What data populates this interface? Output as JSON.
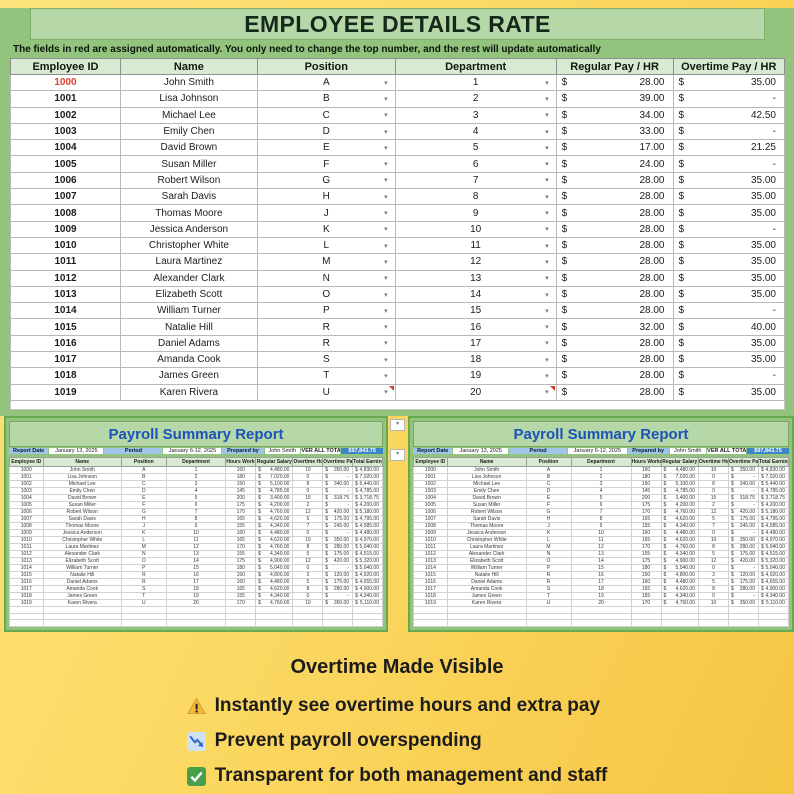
{
  "colors": {
    "green_bg": "#93c47d",
    "green_light": "#b6d7a8",
    "green_header": "#d9ead3",
    "green_border": "#6aa84f",
    "blue_title": "#1c53b8",
    "blue_label": "#9fc5e8",
    "blue_total": "#3d85c6",
    "red_text": "#e03c31",
    "yellow_1": "#fde27d",
    "yellow_2": "#f6c544",
    "text_dark": "#16281a"
  },
  "icons": {
    "dropdown": "▾",
    "currency": "$"
  },
  "top_sheet": {
    "title": "EMPLOYEE DETAILS RATE",
    "note": "The fields in red are assigned automatically. You only need to change the top number, and the rest will update automatically",
    "columns": [
      "Employee ID",
      "Name",
      "Position",
      "Department",
      "Regular Pay / HR",
      "Overtime Pay / HR"
    ],
    "rows": [
      {
        "id": "1000",
        "id_red": true,
        "name": "John Smith",
        "position": "A",
        "department": "1",
        "regular": "28.00",
        "overtime": "35.00"
      },
      {
        "id": "1001",
        "name": "Lisa Johnson",
        "position": "B",
        "department": "2",
        "regular": "39.00",
        "overtime": "-"
      },
      {
        "id": "1002",
        "name": "Michael Lee",
        "position": "C",
        "department": "3",
        "regular": "34.00",
        "overtime": "42.50"
      },
      {
        "id": "1003",
        "name": "Emily Chen",
        "position": "D",
        "department": "4",
        "regular": "33.00",
        "overtime": "-"
      },
      {
        "id": "1004",
        "name": "David Brown",
        "position": "E",
        "department": "5",
        "regular": "17.00",
        "overtime": "21.25"
      },
      {
        "id": "1005",
        "name": "Susan Miller",
        "position": "F",
        "department": "6",
        "regular": "24.00",
        "overtime": "-"
      },
      {
        "id": "1006",
        "name": "Robert Wilson",
        "position": "G",
        "department": "7",
        "regular": "28.00",
        "overtime": "35.00"
      },
      {
        "id": "1007",
        "name": "Sarah Davis",
        "position": "H",
        "department": "8",
        "regular": "28.00",
        "overtime": "35.00"
      },
      {
        "id": "1008",
        "name": "Thomas Moore",
        "position": "J",
        "department": "9",
        "regular": "28.00",
        "overtime": "35.00"
      },
      {
        "id": "1009",
        "name": "Jessica Anderson",
        "position": "K",
        "department": "10",
        "regular": "28.00",
        "overtime": "-"
      },
      {
        "id": "1010",
        "name": "Christopher White",
        "position": "L",
        "department": "11",
        "regular": "28.00",
        "overtime": "35.00"
      },
      {
        "id": "1011",
        "name": "Laura Martinez",
        "position": "M",
        "department": "12",
        "regular": "28.00",
        "overtime": "35.00"
      },
      {
        "id": "1012",
        "name": "Alexander Clark",
        "position": "N",
        "department": "13",
        "regular": "28.00",
        "overtime": "35.00"
      },
      {
        "id": "1013",
        "name": "Elizabeth Scott",
        "position": "O",
        "department": "14",
        "regular": "28.00",
        "overtime": "35.00"
      },
      {
        "id": "1014",
        "name": "William Turner",
        "position": "P",
        "department": "15",
        "regular": "28.00",
        "overtime": "-"
      },
      {
        "id": "1015",
        "name": "Natalie Hill",
        "position": "R",
        "department": "16",
        "regular": "32.00",
        "overtime": "40.00"
      },
      {
        "id": "1016",
        "name": "Daniel Adams",
        "position": "R",
        "department": "17",
        "regular": "28.00",
        "overtime": "35.00"
      },
      {
        "id": "1017",
        "name": "Amanda Cook",
        "position": "S",
        "department": "18",
        "regular": "28.00",
        "overtime": "35.00"
      },
      {
        "id": "1018",
        "name": "James Green",
        "position": "T",
        "department": "19",
        "regular": "28.00",
        "overtime": "-"
      },
      {
        "id": "1019",
        "name": "Karen Rivera",
        "position": "U",
        "department": "20",
        "regular": "28.00",
        "overtime": "35.00",
        "comment_flags": true
      }
    ]
  },
  "summary_report": {
    "title": "Payroll Summary Report",
    "info": {
      "report_date_label": "Report Date",
      "report_date": "January 13, 2025",
      "period_label": "Period",
      "period": "January 6-12, 2025",
      "prepared_by_label": "Prepared by",
      "prepared_by": "John Smith",
      "total_label": "OVER ALL TOTAL",
      "total_value": "$97,843.75"
    },
    "columns": [
      "Employee ID",
      "Name",
      "Position",
      "Department",
      "Hours Worked",
      "Regular Salary",
      "Overtime Hours",
      "Overtime Pay",
      "Total Earnings"
    ],
    "rows": [
      [
        "1000",
        "John Smith",
        "A",
        "1",
        "160",
        "4,480.00",
        "10",
        "350.00",
        "4,830.00"
      ],
      [
        "1001",
        "Lisa Johnson",
        "B",
        "2",
        "180",
        "7,020.00",
        "0",
        "-",
        "7,020.00"
      ],
      [
        "1002",
        "Michael Lee",
        "C",
        "3",
        "150",
        "5,100.00",
        "8",
        "340.00",
        "5,440.00"
      ],
      [
        "1003",
        "Emily Chen",
        "D",
        "4",
        "145",
        "4,785.00",
        "0",
        "-",
        "4,785.00"
      ],
      [
        "1004",
        "David Brown",
        "E",
        "5",
        "200",
        "3,400.00",
        "15",
        "318.75",
        "3,718.75"
      ],
      [
        "1005",
        "Susan Miller",
        "F",
        "6",
        "175",
        "4,200.00",
        "2",
        "-",
        "4,200.00"
      ],
      [
        "1006",
        "Robert Wilson",
        "G",
        "7",
        "170",
        "4,760.00",
        "12",
        "420.00",
        "5,180.00"
      ],
      [
        "1007",
        "Sarah Davis",
        "H",
        "8",
        "165",
        "4,620.00",
        "5",
        "175.00",
        "4,795.00"
      ],
      [
        "1008",
        "Thomas Moore",
        "J",
        "9",
        "155",
        "4,340.00",
        "7",
        "245.00",
        "4,585.00"
      ],
      [
        "1009",
        "Jessica Anderson",
        "K",
        "10",
        "160",
        "4,480.00",
        "0",
        "-",
        "4,480.00"
      ],
      [
        "1010",
        "Christopher White",
        "L",
        "11",
        "165",
        "4,620.00",
        "10",
        "350.00",
        "4,970.00"
      ],
      [
        "1011",
        "Laura Martinez",
        "M",
        "12",
        "170",
        "4,760.00",
        "8",
        "280.00",
        "5,040.00"
      ],
      [
        "1012",
        "Alexander Clark",
        "N",
        "13",
        "155",
        "4,340.00",
        "5",
        "175.00",
        "4,515.00"
      ],
      [
        "1013",
        "Elizabeth Scott",
        "O",
        "14",
        "175",
        "4,900.00",
        "12",
        "420.00",
        "5,320.00"
      ],
      [
        "1014",
        "William Turner",
        "P",
        "15",
        "180",
        "5,040.00",
        "0",
        "-",
        "5,040.00"
      ],
      [
        "1015",
        "Natalie Hill",
        "R",
        "16",
        "150",
        "4,800.00",
        "3",
        "120.00",
        "4,920.00"
      ],
      [
        "1016",
        "Daniel Adams",
        "R",
        "17",
        "160",
        "4,480.00",
        "5",
        "175.00",
        "4,655.00"
      ],
      [
        "1017",
        "Amanda Cook",
        "S",
        "18",
        "165",
        "4,620.00",
        "8",
        "280.00",
        "4,900.00"
      ],
      [
        "1018",
        "James Green",
        "T",
        "19",
        "155",
        "4,340.00",
        "0",
        "-",
        "4,340.00"
      ],
      [
        "1019",
        "Karen Rivera",
        "U",
        "20",
        "170",
        "4,760.00",
        "10",
        "350.00",
        "5,110.00"
      ]
    ]
  },
  "footer": {
    "title": "Overtime Made Visible",
    "bullets": [
      {
        "icon": "warning-icon",
        "text": "Instantly see overtime hours and extra pay"
      },
      {
        "icon": "chart-decreasing-icon",
        "text": "Prevent payroll overspending"
      },
      {
        "icon": "check-icon",
        "text": "Transparent for both management and staff"
      }
    ]
  }
}
